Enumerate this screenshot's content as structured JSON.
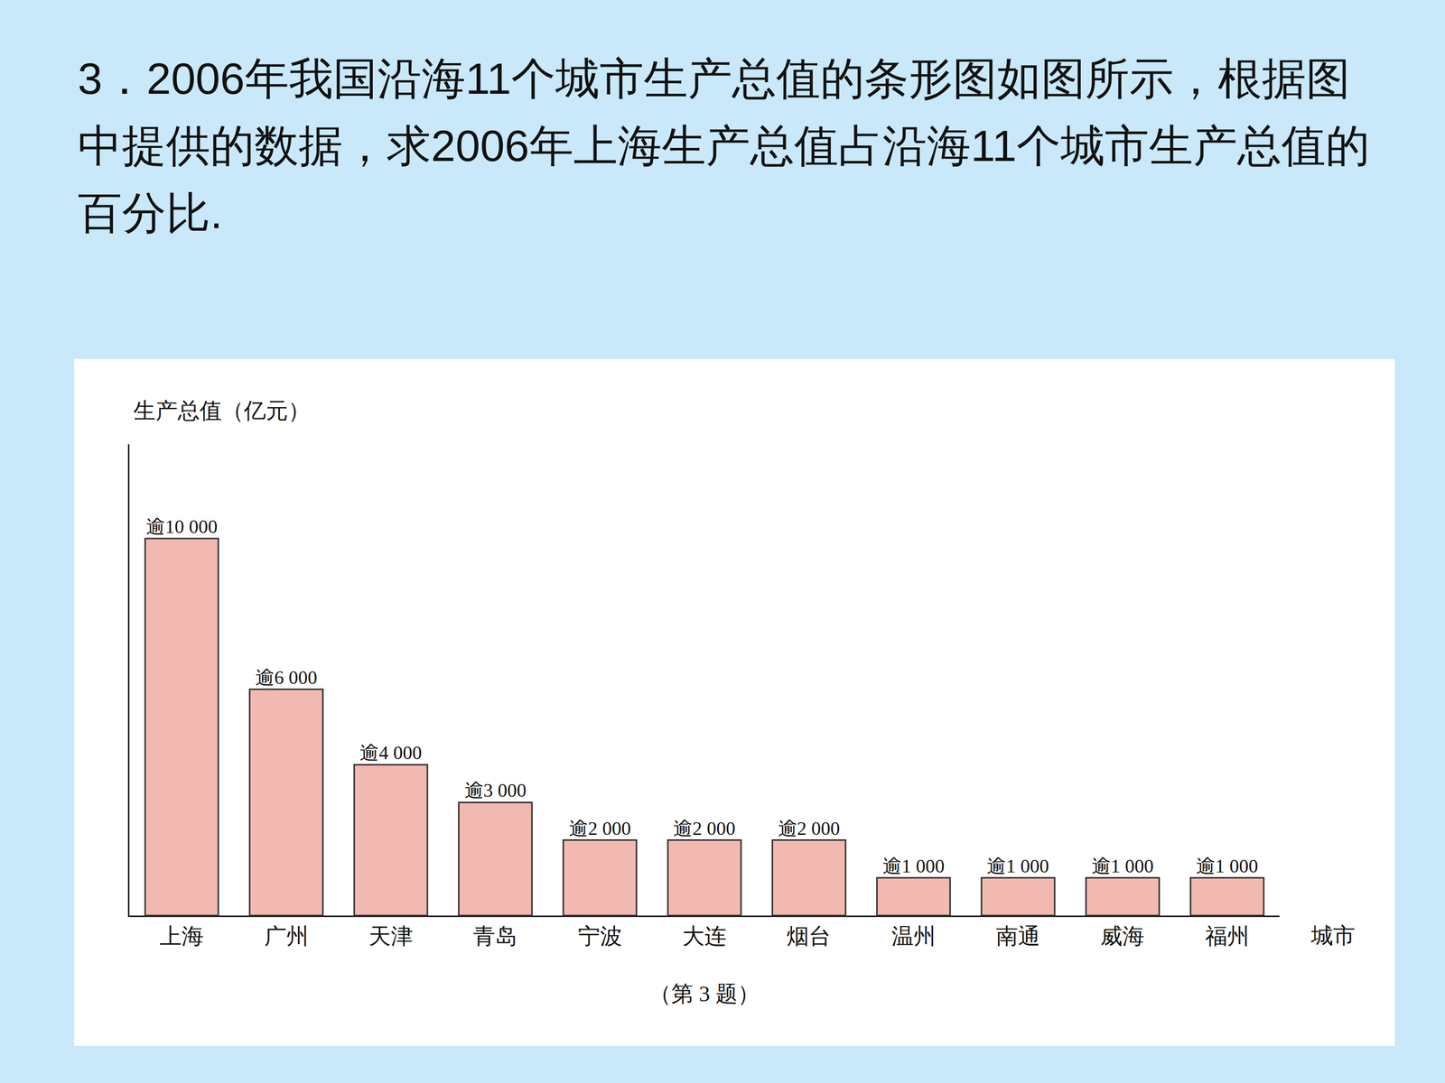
{
  "question": "3．2006年我国沿海11个城市生产总值的条形图如图所示，根据图中提供的数据，求2006年上海生产总值占沿海11个城市生产总值的百分比.",
  "chart_data": {
    "type": "bar",
    "y_label": "生产总值（亿元）",
    "x_label": "城市",
    "caption": "（第 3 题）",
    "categories": [
      "上海",
      "广州",
      "天津",
      "青岛",
      "宁波",
      "大连",
      "烟台",
      "温州",
      "南通",
      "威海",
      "福州"
    ],
    "values": [
      10000,
      6000,
      4000,
      3000,
      2000,
      2000,
      2000,
      1000,
      1000,
      1000,
      1000
    ],
    "value_labels": [
      "逾10 000",
      "逾6 000",
      "逾4 000",
      "逾3 000",
      "逾2 000",
      "逾2 000",
      "逾2 000",
      "逾1 000",
      "逾1 000",
      "逾1 000",
      "逾1 000"
    ],
    "data_labels": true,
    "color": "#f2b9b0",
    "ylim": [
      0,
      12500
    ],
    "grid": false,
    "tick_labels": "x"
  }
}
